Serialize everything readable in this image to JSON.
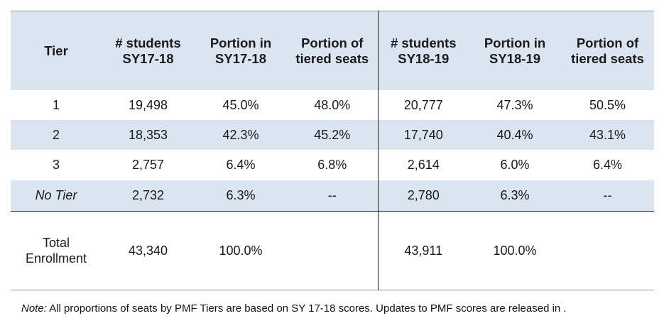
{
  "table": {
    "headers": [
      [
        "Tier"
      ],
      [
        "# students",
        "SY17-18"
      ],
      [
        "Portion in",
        "SY17-18"
      ],
      [
        "Portion of",
        "tiered seats"
      ],
      [
        "# students",
        "SY18-19"
      ],
      [
        "Portion in",
        "SY18-19"
      ],
      [
        "Portion of",
        "tiered seats"
      ]
    ],
    "rows": [
      [
        "1",
        "19,498",
        "45.0%",
        "48.0%",
        "20,777",
        "47.3%",
        "50.5%"
      ],
      [
        "2",
        "18,353",
        "42.3%",
        "45.2%",
        "17,740",
        "40.4%",
        "43.1%"
      ],
      [
        "3",
        "2,757",
        "6.4%",
        "6.8%",
        "2,614",
        "6.0%",
        "6.4%"
      ],
      [
        "No Tier",
        "2,732",
        "6.3%",
        "--",
        "2,780",
        "6.3%",
        "--"
      ]
    ],
    "total": {
      "label": [
        "Total",
        "Enrollment"
      ],
      "values": [
        "43,340",
        "100.0%",
        "",
        "43,911",
        "100.0%",
        ""
      ]
    },
    "colors": {
      "header_fill": "#dbe5f1",
      "row_fill": "#dbe5f1",
      "rule": "#7c9cc4"
    }
  },
  "note": {
    "lead": "Note:",
    "text": " All proportions of seats by PMF Tiers are based on SY 17-18 scores. Updates to PMF scores are released in ."
  }
}
